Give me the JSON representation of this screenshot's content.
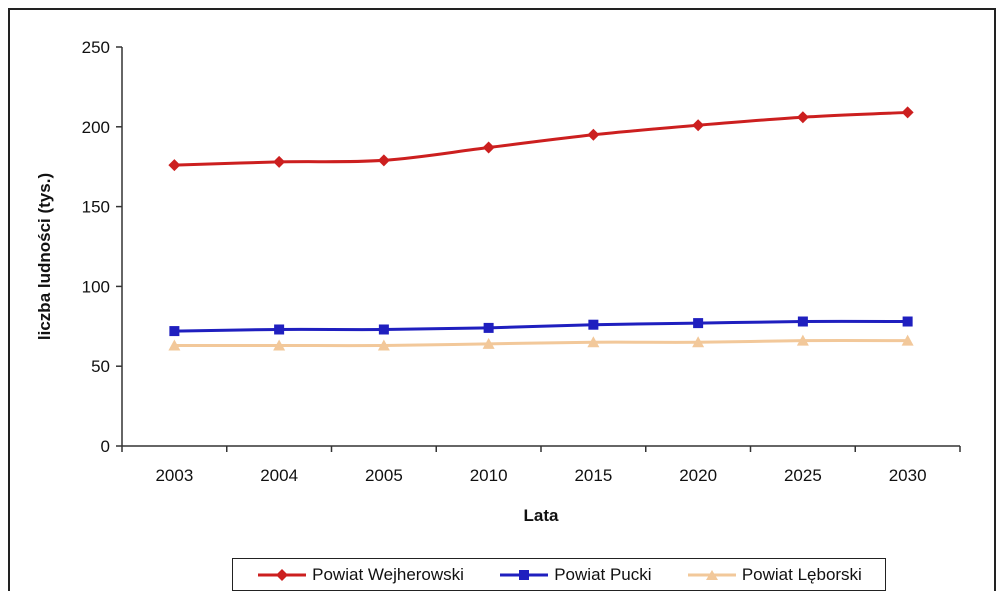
{
  "chart_data": {
    "type": "line",
    "title": "",
    "xlabel": "Lata",
    "ylabel": "liczba ludności (tys.)",
    "categories": [
      "2003",
      "2004",
      "2005",
      "2010",
      "2015",
      "2020",
      "2025",
      "2030"
    ],
    "ylim": [
      0,
      250
    ],
    "yticks": [
      "0",
      "50",
      "100",
      "150",
      "200",
      "250"
    ],
    "grid": false,
    "legend_position": "bottom",
    "series": [
      {
        "name": "Powiat Wejherowski",
        "color": "#cc1f1f",
        "marker": "diamond",
        "values": [
          176,
          178,
          179,
          187,
          195,
          201,
          206,
          209
        ]
      },
      {
        "name": "Powiat Pucki",
        "color": "#1f1fbf",
        "marker": "square",
        "values": [
          72,
          73,
          73,
          74,
          76,
          77,
          78,
          78
        ]
      },
      {
        "name": "Powiat Lęborski",
        "color": "#f2c89a",
        "marker": "triangle",
        "values": [
          63,
          63,
          63,
          64,
          65,
          65,
          66,
          66
        ]
      }
    ]
  }
}
